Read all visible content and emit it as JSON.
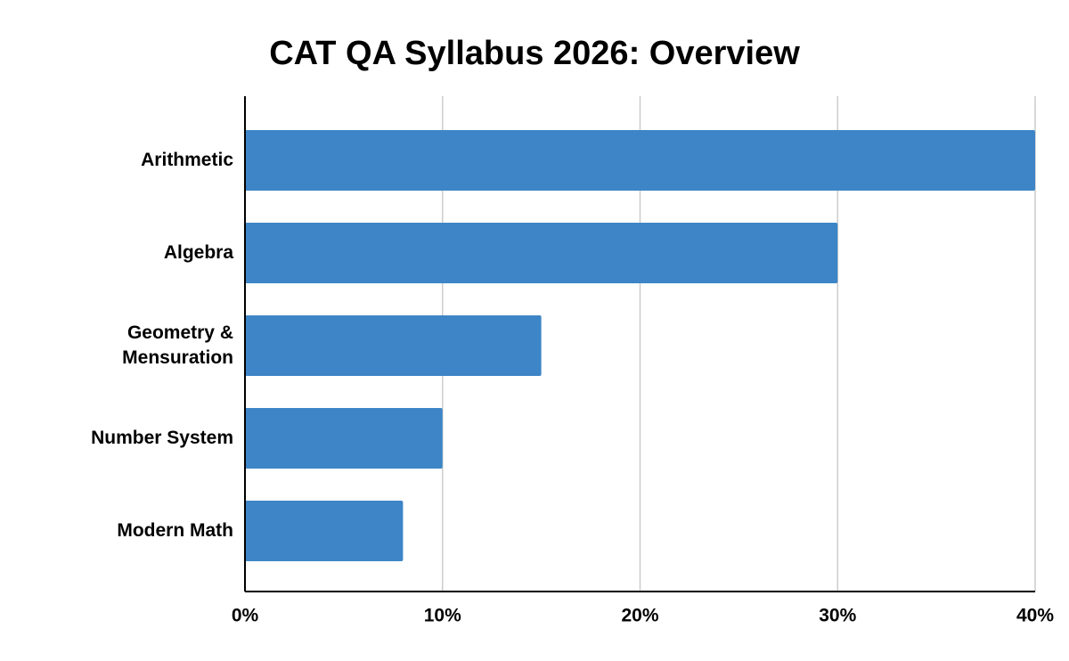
{
  "chart_data": {
    "type": "bar",
    "orientation": "horizontal",
    "title": "CAT QA Syllabus 2026: Overview",
    "categories": [
      "Arithmetic",
      "Algebra",
      "Geometry & Mensuration",
      "Number System",
      "Modern Math"
    ],
    "values": [
      40,
      30,
      15,
      10,
      8
    ],
    "color": "#3d85c6",
    "xlim": [
      0,
      40
    ],
    "xticks": [
      {
        "value": 0,
        "label": "0%"
      },
      {
        "value": 10,
        "label": "10%"
      },
      {
        "value": 20,
        "label": "20%"
      },
      {
        "value": 30,
        "label": "30%"
      },
      {
        "value": 40,
        "label": "40%"
      }
    ],
    "grid": true
  }
}
